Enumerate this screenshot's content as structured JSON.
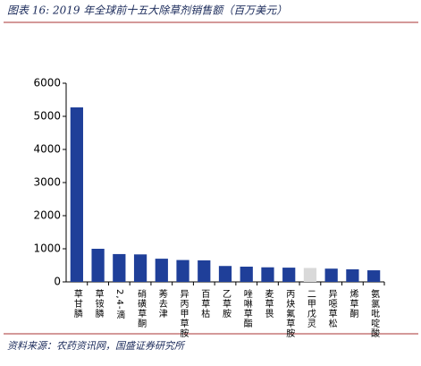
{
  "chart_data": {
    "type": "bar",
    "title": "图表 16: 2019 年全球前十五大除草剂销售额（百万美元）",
    "source": "资料来源：农药资讯网，国盛证券研究所",
    "categories": [
      "草甘膦",
      "草铵膦",
      "2,4-滴",
      "硝磺草酮",
      "莠去津",
      "异丙甲草胺",
      "百草枯",
      "乙草胺",
      "唑啉草酯",
      "麦草畏",
      "丙炔氟草胺",
      "二甲戊灵",
      "异噁草松",
      "烯草酮",
      "氨氯吡啶酸"
    ],
    "values": [
      5270,
      1000,
      840,
      830,
      700,
      660,
      650,
      480,
      460,
      440,
      430,
      420,
      400,
      380,
      350
    ],
    "colors": [
      "#1f3f99",
      "#1f3f99",
      "#1f3f99",
      "#1f3f99",
      "#1f3f99",
      "#1f3f99",
      "#1f3f99",
      "#1f3f99",
      "#1f3f99",
      "#1f3f99",
      "#1f3f99",
      "#d9d9d9",
      "#1f3f99",
      "#1f3f99",
      "#1f3f99"
    ],
    "ylim": [
      0,
      6000
    ],
    "yticks": [
      0,
      1000,
      2000,
      3000,
      4000,
      5000,
      6000
    ],
    "grid": false
  }
}
